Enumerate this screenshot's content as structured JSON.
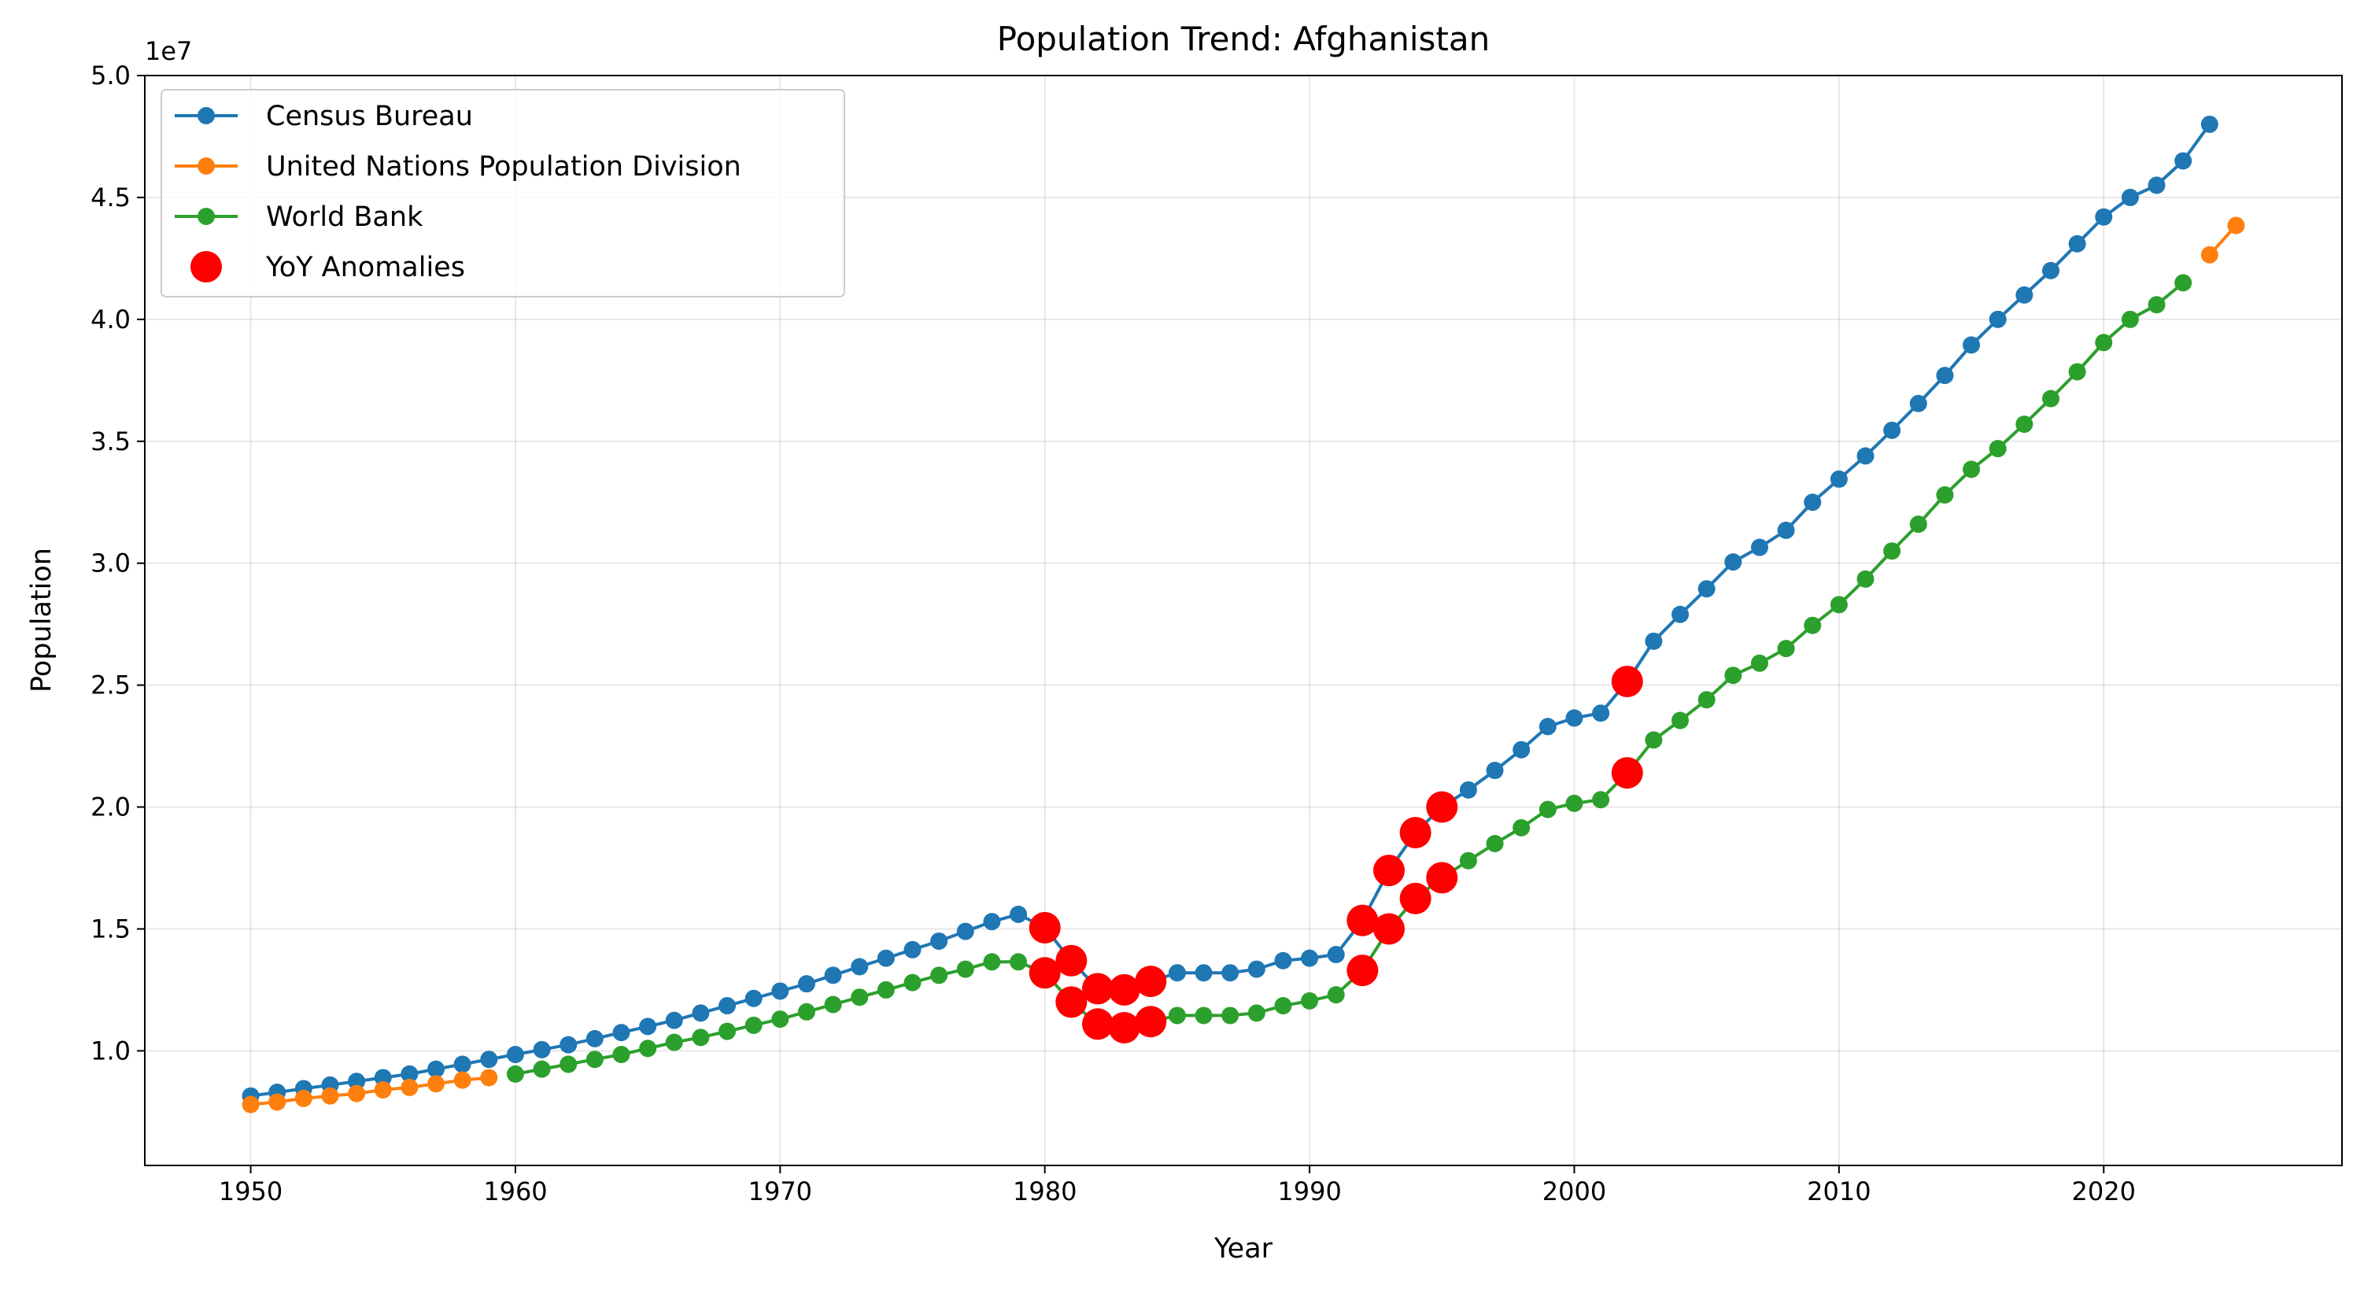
{
  "chart_data": {
    "type": "line",
    "title": "Population Trend: Afghanistan",
    "xlabel": "Year",
    "ylabel": "Population",
    "y_scale_label": "1e7",
    "xlim": [
      1946,
      2029
    ],
    "ylim": [
      5300000,
      50000000
    ],
    "xticks": [
      1950,
      1960,
      1970,
      1980,
      1990,
      2000,
      2010,
      2020
    ],
    "xtick_labels": [
      "1950",
      "1960",
      "1970",
      "1980",
      "1990",
      "2000",
      "2010",
      "2020"
    ],
    "yticks": [
      10000000,
      15000000,
      20000000,
      25000000,
      30000000,
      35000000,
      40000000,
      45000000,
      50000000
    ],
    "ytick_labels": [
      "1.0",
      "1.5",
      "2.0",
      "2.5",
      "3.0",
      "3.5",
      "4.0",
      "4.5",
      "5.0"
    ],
    "grid": true,
    "legend_position": "top-left",
    "series": [
      {
        "name": "Census Bureau",
        "color": "#1f77b4",
        "x": [
          1950,
          1951,
          1952,
          1953,
          1954,
          1955,
          1956,
          1957,
          1958,
          1959,
          1960,
          1961,
          1962,
          1963,
          1964,
          1965,
          1966,
          1967,
          1968,
          1969,
          1970,
          1971,
          1972,
          1973,
          1974,
          1975,
          1976,
          1977,
          1978,
          1979,
          1980,
          1981,
          1982,
          1983,
          1984,
          1985,
          1986,
          1987,
          1988,
          1989,
          1990,
          1991,
          1992,
          1993,
          1994,
          1995,
          1996,
          1997,
          1998,
          1999,
          2000,
          2001,
          2002,
          2003,
          2004,
          2005,
          2006,
          2007,
          2008,
          2009,
          2010,
          2011,
          2012,
          2013,
          2014,
          2015,
          2016,
          2017,
          2018,
          2019,
          2020,
          2021,
          2022,
          2023,
          2024
        ],
        "y": [
          8150000,
          8300000,
          8450000,
          8600000,
          8750000,
          8900000,
          9050000,
          9250000,
          9450000,
          9650000,
          9850000,
          10050000,
          10250000,
          10500000,
          10750000,
          11000000,
          11250000,
          11550000,
          11850000,
          12150000,
          12450000,
          12750000,
          13100000,
          13450000,
          13800000,
          14150000,
          14500000,
          14900000,
          15300000,
          15600000,
          15050000,
          13700000,
          12550000,
          12500000,
          12850000,
          13200000,
          13200000,
          13200000,
          13350000,
          13700000,
          13800000,
          13950000,
          15350000,
          17400000,
          18950000,
          20000000,
          20700000,
          21500000,
          22350000,
          23300000,
          23650000,
          23850000,
          25150000,
          26800000,
          27900000,
          28950000,
          30050000,
          30650000,
          31350000,
          32500000,
          33450000,
          34400000,
          35450000,
          36550000,
          37700000,
          38950000,
          40000000,
          41000000,
          42000000,
          43100000,
          44200000,
          45000000,
          45500000,
          46500000,
          48000000
        ]
      },
      {
        "name": "United Nations Population Division",
        "color": "#ff7f0e",
        "x": [
          1950,
          1951,
          1952,
          1953,
          1954,
          1955,
          1956,
          1957,
          1958,
          1959,
          2024,
          2025
        ],
        "y": [
          7800000,
          7900000,
          8050000,
          8150000,
          8250000,
          8400000,
          8500000,
          8650000,
          8800000,
          8900000,
          42650000,
          43850000
        ]
      },
      {
        "name": "World Bank",
        "color": "#2ca02c",
        "x": [
          1960,
          1961,
          1962,
          1963,
          1964,
          1965,
          1966,
          1967,
          1968,
          1969,
          1970,
          1971,
          1972,
          1973,
          1974,
          1975,
          1976,
          1977,
          1978,
          1979,
          1980,
          1981,
          1982,
          1983,
          1984,
          1985,
          1986,
          1987,
          1988,
          1989,
          1990,
          1991,
          1992,
          1993,
          1994,
          1995,
          1996,
          1997,
          1998,
          1999,
          2000,
          2001,
          2002,
          2003,
          2004,
          2005,
          2006,
          2007,
          2008,
          2009,
          2010,
          2011,
          2012,
          2013,
          2014,
          2015,
          2016,
          2017,
          2018,
          2019,
          2020,
          2021,
          2022,
          2023
        ],
        "y": [
          9050000,
          9250000,
          9450000,
          9650000,
          9850000,
          10100000,
          10350000,
          10550000,
          10800000,
          11050000,
          11300000,
          11600000,
          11900000,
          12200000,
          12500000,
          12800000,
          13100000,
          13350000,
          13650000,
          13650000,
          13200000,
          12000000,
          11100000,
          10950000,
          11200000,
          11450000,
          11450000,
          11450000,
          11550000,
          11850000,
          12050000,
          12300000,
          13300000,
          15000000,
          16250000,
          17100000,
          17800000,
          18500000,
          19150000,
          19900000,
          20150000,
          20300000,
          21400000,
          22750000,
          23550000,
          24400000,
          25400000,
          25900000,
          26500000,
          27450000,
          28300000,
          29350000,
          30500000,
          31600000,
          32800000,
          33850000,
          34700000,
          35700000,
          36750000,
          37850000,
          39050000,
          40000000,
          40600000,
          41500000
        ]
      }
    ],
    "anomalies": {
      "name": "YoY Anomalies",
      "color": "#ff0000",
      "x": [
        1980,
        1981,
        1982,
        1983,
        1984,
        1980,
        1981,
        1982,
        1983,
        1984,
        1992,
        1993,
        1994,
        1995,
        1992,
        1993,
        1994,
        1995,
        2002,
        2002
      ],
      "y": [
        15050000,
        13700000,
        12550000,
        12500000,
        12850000,
        13200000,
        12000000,
        11100000,
        10950000,
        11200000,
        15350000,
        17400000,
        18950000,
        20000000,
        13300000,
        15000000,
        16250000,
        17100000,
        25150000,
        21400000
      ]
    }
  }
}
